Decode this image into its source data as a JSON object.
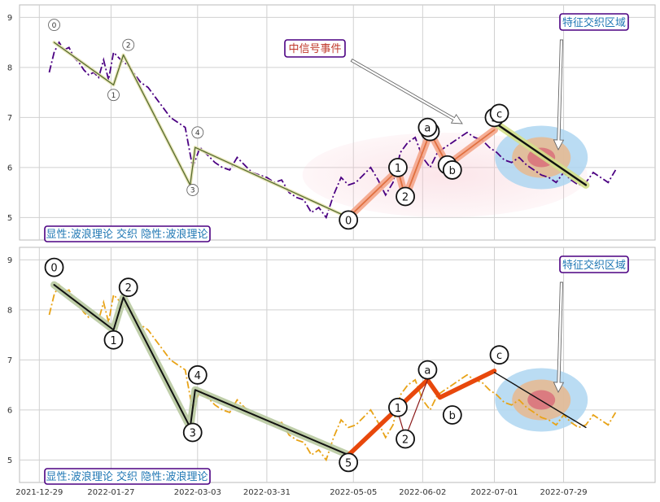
{
  "chart_data": [
    {
      "type": "line",
      "panel": "top",
      "ylim": [
        4.55,
        9.25
      ],
      "yticks": [
        5,
        6,
        7,
        8,
        9
      ],
      "grid": true,
      "legend_text": "显性:波浪理论 交织 隐性:波浪理论",
      "annotations": [
        {
          "text": "中信号事件",
          "color": "#c0392b"
        },
        {
          "text": "特征交织区域",
          "color": "#1f77b4"
        }
      ],
      "series": [
        {
          "style": "dashdot",
          "color": "#4b0082",
          "x": [
            "2022-01-02",
            "2022-01-04",
            "2022-01-06",
            "2022-01-08",
            "2022-01-10",
            "2022-01-12",
            "2022-01-14",
            "2022-01-16",
            "2022-01-18",
            "2022-01-20",
            "2022-01-22",
            "2022-01-24",
            "2022-01-26",
            "2022-01-28",
            "2022-01-30",
            "2022-02-01",
            "2022-02-03",
            "2022-02-05",
            "2022-02-08",
            "2022-02-11",
            "2022-02-14",
            "2022-02-17",
            "2022-02-20",
            "2022-02-23",
            "2022-02-26",
            "2022-03-01",
            "2022-03-04",
            "2022-03-07",
            "2022-03-10",
            "2022-03-13",
            "2022-03-16",
            "2022-03-19",
            "2022-03-22",
            "2022-03-25",
            "2022-03-28",
            "2022-03-31",
            "2022-04-03",
            "2022-04-06",
            "2022-04-09",
            "2022-04-12",
            "2022-04-15",
            "2022-04-18",
            "2022-04-21",
            "2022-04-24",
            "2022-04-27",
            "2022-04-30",
            "2022-05-03",
            "2022-05-06",
            "2022-05-09",
            "2022-05-12",
            "2022-05-15",
            "2022-05-18",
            "2022-05-21",
            "2022-05-24",
            "2022-05-27",
            "2022-05-30",
            "2022-06-02",
            "2022-06-05",
            "2022-06-08",
            "2022-06-11",
            "2022-06-14",
            "2022-06-17",
            "2022-06-20",
            "2022-06-23",
            "2022-06-26",
            "2022-06-29",
            "2022-07-02",
            "2022-07-05",
            "2022-07-08",
            "2022-07-11",
            "2022-07-14",
            "2022-07-17",
            "2022-07-20",
            "2022-07-23",
            "2022-07-26",
            "2022-07-29",
            "2022-08-01",
            "2022-08-04",
            "2022-08-07",
            "2022-08-10",
            "2022-08-13",
            "2022-08-16",
            "2022-08-19"
          ],
          "y": [
            7.9,
            8.3,
            8.5,
            8.35,
            8.4,
            8.2,
            8.1,
            7.95,
            7.85,
            7.9,
            7.8,
            8.15,
            7.75,
            8.3,
            8.2,
            8.1,
            8.05,
            7.9,
            7.7,
            7.6,
            7.4,
            7.2,
            7.0,
            6.9,
            6.8,
            6.0,
            6.4,
            6.25,
            6.1,
            6.0,
            5.95,
            6.2,
            6.05,
            5.9,
            5.85,
            5.8,
            5.7,
            5.75,
            5.5,
            5.4,
            5.35,
            5.1,
            5.2,
            5.0,
            5.45,
            5.8,
            5.65,
            5.7,
            5.85,
            6.0,
            5.75,
            5.45,
            5.7,
            6.3,
            6.5,
            6.6,
            6.2,
            6.0,
            6.3,
            6.4,
            6.5,
            6.6,
            6.7,
            6.6,
            6.55,
            6.4,
            6.3,
            6.15,
            6.1,
            6.2,
            6.05,
            5.95,
            5.85,
            5.8,
            5.7,
            5.9,
            5.75,
            5.65,
            5.7,
            5.9,
            5.8,
            5.7,
            5.95
          ]
        },
        {
          "name": "wave_a",
          "style": "solid",
          "color": "#556b2f",
          "x": [
            "2022-01-04",
            "2022-01-28",
            "2022-02-01",
            "2022-02-28",
            "2022-03-02",
            "2022-05-03"
          ],
          "y": [
            8.5,
            7.65,
            8.25,
            5.65,
            6.4,
            5.0
          ]
        },
        {
          "name": "wave_b",
          "style": "solid",
          "color": "#e07040",
          "x": [
            "2022-05-03",
            "2022-05-23",
            "2022-05-26",
            "2022-06-05",
            "2022-06-12",
            "2022-07-01"
          ],
          "y": [
            5.0,
            5.95,
            5.4,
            6.7,
            6.05,
            6.75
          ]
        },
        {
          "name": "wave_c",
          "style": "solid",
          "color": "#111111",
          "x": [
            "2022-07-01",
            "2022-08-07"
          ],
          "y": [
            6.9,
            5.65
          ]
        }
      ],
      "wave_labels": [
        {
          "text": "0",
          "x": "2022-01-04",
          "y": 8.85
        },
        {
          "text": "1",
          "x": "2022-01-28",
          "y": 7.45
        },
        {
          "text": "2",
          "x": "2022-02-03",
          "y": 8.45
        },
        {
          "text": "3",
          "x": "2022-03-01",
          "y": 5.55
        },
        {
          "text": "4",
          "x": "2022-03-03",
          "y": 6.7
        },
        {
          "text": "0",
          "x": "2022-05-03",
          "y": 4.95
        },
        {
          "text": "1",
          "x": "2022-05-23",
          "y": 6.0
        },
        {
          "text": "2",
          "x": "2022-05-26",
          "y": 5.42
        },
        {
          "text": "3",
          "x": "2022-06-05",
          "y": 6.72
        },
        {
          "text": "4",
          "x": "2022-06-12",
          "y": 6.05
        },
        {
          "text": "5",
          "x": "2022-07-01",
          "y": 7.0
        },
        {
          "text": "a",
          "x": "2022-06-04",
          "y": 6.8
        },
        {
          "text": "b",
          "x": "2022-06-14",
          "y": 5.95
        },
        {
          "text": "c",
          "x": "2022-07-03",
          "y": 7.08
        }
      ]
    },
    {
      "type": "line",
      "panel": "bottom",
      "ylim": [
        4.55,
        9.25
      ],
      "yticks": [
        5,
        6,
        7,
        8,
        9
      ],
      "grid": true,
      "legend_text": "显性:波浪理论 交织 隐性:波浪理论",
      "annotations": [
        {
          "text": "特征交织区域",
          "color": "#1f77b4"
        }
      ],
      "xticks": [
        "2021-12-29",
        "2022-01-27",
        "2022-03-03",
        "2022-03-31",
        "2022-05-05",
        "2022-06-02",
        "2022-07-01",
        "2022-07-29"
      ],
      "series": [
        {
          "style": "dashdot",
          "color": "#e8a317",
          "x": [
            "2022-01-02",
            "2022-01-04",
            "2022-01-06",
            "2022-01-08",
            "2022-01-10",
            "2022-01-12",
            "2022-01-14",
            "2022-01-16",
            "2022-01-18",
            "2022-01-20",
            "2022-01-22",
            "2022-01-24",
            "2022-01-26",
            "2022-01-28",
            "2022-01-30",
            "2022-02-01",
            "2022-02-03",
            "2022-02-05",
            "2022-02-08",
            "2022-02-11",
            "2022-02-14",
            "2022-02-17",
            "2022-02-20",
            "2022-02-23",
            "2022-02-26",
            "2022-03-01",
            "2022-03-04",
            "2022-03-07",
            "2022-03-10",
            "2022-03-13",
            "2022-03-16",
            "2022-03-19",
            "2022-03-22",
            "2022-03-25",
            "2022-03-28",
            "2022-03-31",
            "2022-04-03",
            "2022-04-06",
            "2022-04-09",
            "2022-04-12",
            "2022-04-15",
            "2022-04-18",
            "2022-04-21",
            "2022-04-24",
            "2022-04-27",
            "2022-04-30",
            "2022-05-03",
            "2022-05-06",
            "2022-05-09",
            "2022-05-12",
            "2022-05-15",
            "2022-05-18",
            "2022-05-21",
            "2022-05-24",
            "2022-05-27",
            "2022-05-30",
            "2022-06-02",
            "2022-06-05",
            "2022-06-08",
            "2022-06-11",
            "2022-06-14",
            "2022-06-17",
            "2022-06-20",
            "2022-06-23",
            "2022-06-26",
            "2022-06-29",
            "2022-07-02",
            "2022-07-05",
            "2022-07-08",
            "2022-07-11",
            "2022-07-14",
            "2022-07-17",
            "2022-07-20",
            "2022-07-23",
            "2022-07-26",
            "2022-07-29",
            "2022-08-01",
            "2022-08-04",
            "2022-08-07",
            "2022-08-10",
            "2022-08-13",
            "2022-08-16",
            "2022-08-19"
          ],
          "y": [
            7.9,
            8.3,
            8.5,
            8.35,
            8.4,
            8.2,
            8.1,
            7.95,
            7.85,
            7.9,
            7.8,
            8.15,
            7.75,
            8.3,
            8.2,
            8.1,
            8.05,
            7.9,
            7.7,
            7.6,
            7.4,
            7.2,
            7.0,
            6.9,
            6.8,
            6.0,
            6.4,
            6.25,
            6.1,
            6.0,
            5.95,
            6.2,
            6.05,
            5.9,
            5.85,
            5.8,
            5.7,
            5.75,
            5.5,
            5.4,
            5.35,
            5.1,
            5.2,
            5.0,
            5.45,
            5.8,
            5.65,
            5.7,
            5.85,
            6.0,
            5.75,
            5.45,
            5.7,
            6.3,
            6.5,
            6.6,
            6.2,
            6.0,
            6.3,
            6.4,
            6.5,
            6.6,
            6.7,
            6.6,
            6.55,
            6.4,
            6.3,
            6.15,
            6.1,
            6.2,
            6.05,
            5.95,
            5.85,
            5.8,
            5.7,
            5.9,
            5.75,
            5.65,
            5.7,
            5.9,
            5.8,
            5.7,
            5.95
          ]
        },
        {
          "name": "wave_a",
          "style": "solid",
          "color": "#111111",
          "x": [
            "2022-01-04",
            "2022-01-28",
            "2022-02-01",
            "2022-02-28",
            "2022-03-02",
            "2022-05-03"
          ],
          "y": [
            8.5,
            7.6,
            8.25,
            5.65,
            6.4,
            5.1
          ]
        },
        {
          "name": "wave_b",
          "style": "solid",
          "color": "#e8480c",
          "x": [
            "2022-05-03",
            "2022-06-04",
            "2022-06-09",
            "2022-07-01"
          ],
          "y": [
            5.1,
            6.6,
            6.25,
            6.78
          ]
        },
        {
          "name": "wave_b_thin",
          "style": "solid",
          "color": "#8b1a1a",
          "x": [
            "2022-05-23",
            "2022-05-26",
            "2022-06-04"
          ],
          "y": [
            5.95,
            5.45,
            6.6
          ]
        },
        {
          "name": "wave_c",
          "style": "solid",
          "color": "#111111",
          "x": [
            "2022-07-01",
            "2022-08-07"
          ],
          "y": [
            6.75,
            5.65
          ]
        }
      ],
      "wave_labels": [
        {
          "text": "0",
          "x": "2022-01-04",
          "y": 8.85
        },
        {
          "text": "1",
          "x": "2022-01-28",
          "y": 7.4
        },
        {
          "text": "2",
          "x": "2022-02-03",
          "y": 8.45
        },
        {
          "text": "3",
          "x": "2022-03-01",
          "y": 5.55
        },
        {
          "text": "4",
          "x": "2022-03-03",
          "y": 6.7
        },
        {
          "text": "5",
          "x": "2022-05-03",
          "y": 4.95
        },
        {
          "text": "1",
          "x": "2022-05-23",
          "y": 6.05
        },
        {
          "text": "2",
          "x": "2022-05-26",
          "y": 5.42
        },
        {
          "text": "a",
          "x": "2022-06-04",
          "y": 6.8
        },
        {
          "text": "b",
          "x": "2022-06-14",
          "y": 5.9
        },
        {
          "text": "c",
          "x": "2022-07-03",
          "y": 7.1
        }
      ]
    }
  ]
}
